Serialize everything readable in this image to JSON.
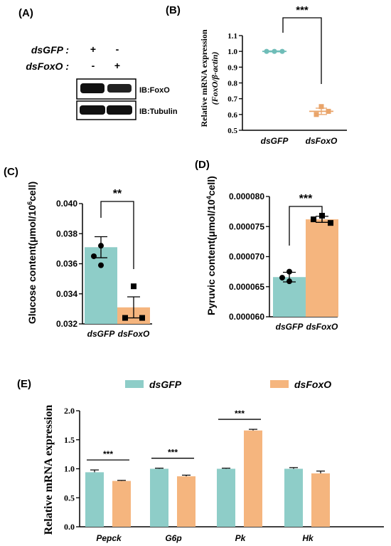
{
  "colors": {
    "teal": "#8ecdc8",
    "orange": "#f5b57e",
    "teal_dark": "#6fbdb8",
    "orange_dark": "#e9a46a"
  },
  "panels": {
    "a": "(A)",
    "b": "(B)",
    "c": "(C)",
    "d": "(D)",
    "e": "(E)"
  },
  "blot": {
    "row1_label": "dsGFP :",
    "row2_label": "dsFoxO :",
    "row1_signs": [
      "+",
      "-"
    ],
    "row2_signs": [
      "-",
      "+"
    ],
    "band1_label": "IB:FoxO",
    "band2_label": "IB:Tubulin"
  },
  "chart_data": [
    {
      "id": "B",
      "type": "scatter",
      "ylabel": "Relative mRNA expression (FoxO/β-actin)",
      "ylabel_line1": "Relative mRNA expression",
      "ylabel_line2": "(FoxO/β-actin)",
      "ylim": [
        0.5,
        1.1
      ],
      "yticks": [
        "0.5",
        "0.6",
        "0.7",
        "0.8",
        "0.9",
        "1.0",
        "1.1"
      ],
      "categories": [
        "dsGFP",
        "dsFoxO"
      ],
      "means": [
        1.0,
        0.62
      ],
      "sem": [
        0.003,
        0.02
      ],
      "points": [
        [
          1.0,
          1.0,
          1.0
        ],
        [
          0.65,
          0.6,
          0.62
        ]
      ],
      "significance": "***"
    },
    {
      "id": "C",
      "type": "bar",
      "ylabel_main": "Glucose content(μmol/10",
      "ylabel_sup": "6",
      "ylabel_end": "cell)",
      "ylim": [
        0.032,
        0.04
      ],
      "yticks": [
        "0.032",
        "0.034",
        "0.036",
        "0.038",
        "0.040"
      ],
      "categories": [
        "dsGFP",
        "dsFoxO"
      ],
      "values": [
        0.0371,
        0.0331
      ],
      "sem": [
        0.0007,
        0.0007
      ],
      "points": [
        [
          0.0372,
          0.0365,
          0.0359
        ],
        [
          0.0345,
          0.0324,
          0.0324
        ]
      ],
      "significance": "**"
    },
    {
      "id": "D",
      "type": "bar",
      "ylabel_main": "Pyruvic content(μmol/10",
      "ylabel_sup": "4",
      "ylabel_end": "cell)",
      "ylim": [
        6e-05,
        8e-05
      ],
      "yticks": [
        "0.000060",
        "0.000065",
        "0.000070",
        "0.000075",
        "0.000080"
      ],
      "categories": [
        "dsGFP",
        "dsFoxO"
      ],
      "values": [
        6.66e-05,
        7.62e-05
      ],
      "sem": [
        8e-07,
        5e-07
      ],
      "points": [
        [
          6.75e-05,
          6.65e-05,
          6.59e-05
        ],
        [
          7.68e-05,
          7.62e-05,
          7.56e-05
        ]
      ],
      "significance": "***"
    },
    {
      "id": "E",
      "type": "bar",
      "ylabel": "Relative mRNA expression",
      "ylim": [
        0.0,
        2.0
      ],
      "yticks": [
        "0.0",
        "0.5",
        "1.0",
        "1.5",
        "2.0"
      ],
      "categories": [
        "Pepck",
        "G6p",
        "Pk",
        "Hk"
      ],
      "series": [
        {
          "name": "dsGFP",
          "values": [
            0.94,
            1.0,
            1.0,
            1.0
          ],
          "sem": [
            0.04,
            0.01,
            0.01,
            0.02
          ]
        },
        {
          "name": "dsFoxO",
          "values": [
            0.79,
            0.87,
            1.66,
            0.92
          ],
          "sem": [
            0.01,
            0.02,
            0.02,
            0.04
          ]
        }
      ],
      "significance": [
        "***",
        "***",
        "***",
        ""
      ]
    }
  ]
}
